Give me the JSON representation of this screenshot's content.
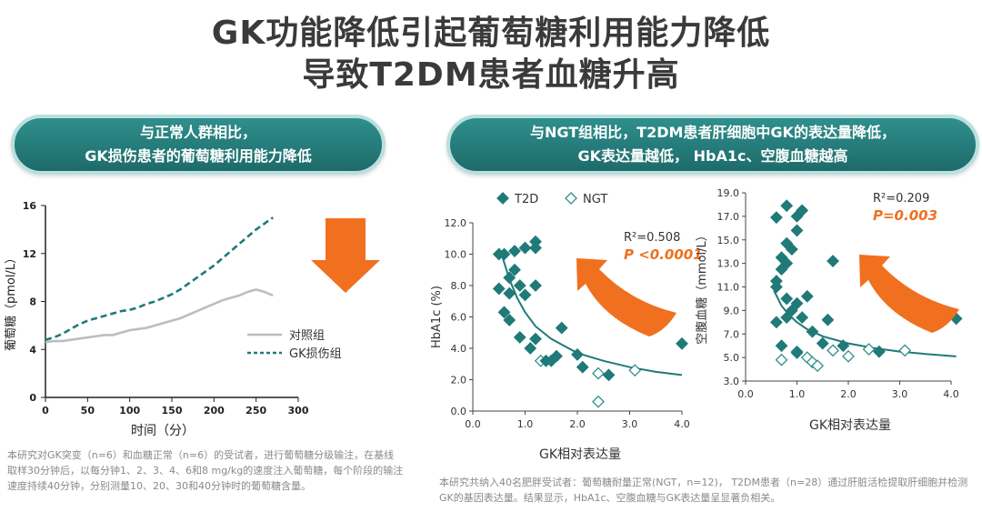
{
  "title": {
    "line1": "GK功能降低引起葡萄糖利用能力降低",
    "line2": "导致T2DM患者血糖升高"
  },
  "banner_left": {
    "line1": "与正常人群相比，",
    "line2": "GK损伤患者的葡萄糖利用能力降低"
  },
  "banner_right": {
    "line1": "与NGT组相比，T2DM患者肝细胞中GK的表达量降低，",
    "line2": "GK表达量越低， HbA1c、空腹血糖越高"
  },
  "note_left": "本研究对GK突变（n=6）和血糖正常（n=6）的受试者，进行葡萄糖分级输注，在基线取样30分钟后，以每分钟1、2、3、4、6和8 mg/kg的速度注入葡萄糖，每个阶段的输注速度持续40分钟，分别测量10、20、30和40分钟时的葡萄糖含量。",
  "note_right": "本研究共纳入40名肥胖受试者：葡萄糖耐量正常(NGT，n=12)， T2DM患者（n=28）通过肝脏活检提取肝细胞并检测GK的基因表达量。结果显示，HbA1c、空腹血糖与GK表达量呈显著负相关。",
  "colors": {
    "teal": "#1f7a78",
    "gray_line": "#bdbdbd",
    "orange": "#f07020",
    "text": "#444444"
  },
  "chart_data": [
    {
      "type": "line",
      "xlabel": "时间（分）",
      "ylabel": "葡萄糖（pmol/L）",
      "xlim": [
        0,
        300
      ],
      "ylim": [
        0,
        16
      ],
      "xticks": [
        0,
        50,
        100,
        150,
        200,
        250,
        300
      ],
      "yticks": [
        0,
        4,
        8,
        12,
        16
      ],
      "legend_position": "bottom-right",
      "series": [
        {
          "name": "对照组",
          "style": "solid",
          "color": "#bdbdbd",
          "x": [
            0,
            10,
            20,
            30,
            40,
            50,
            60,
            70,
            80,
            90,
            100,
            110,
            120,
            130,
            140,
            150,
            160,
            170,
            180,
            190,
            200,
            210,
            220,
            230,
            240,
            250,
            260,
            270
          ],
          "y": [
            4.6,
            4.7,
            4.7,
            4.8,
            4.9,
            5.0,
            5.1,
            5.2,
            5.2,
            5.4,
            5.6,
            5.7,
            5.8,
            6.0,
            6.2,
            6.4,
            6.6,
            6.9,
            7.2,
            7.5,
            7.8,
            8.1,
            8.3,
            8.5,
            8.8,
            9.0,
            8.8,
            8.5
          ]
        },
        {
          "name": "GK损伤组",
          "style": "dashed",
          "color": "#1f7a78",
          "x": [
            0,
            10,
            20,
            30,
            40,
            50,
            60,
            70,
            80,
            90,
            100,
            110,
            120,
            130,
            140,
            150,
            160,
            170,
            180,
            190,
            200,
            210,
            220,
            230,
            240,
            250,
            260,
            270
          ],
          "y": [
            4.8,
            5.0,
            5.3,
            5.7,
            6.1,
            6.4,
            6.6,
            6.8,
            7.0,
            7.2,
            7.3,
            7.5,
            7.8,
            8.0,
            8.3,
            8.6,
            9.0,
            9.5,
            10.0,
            10.5,
            11.0,
            11.6,
            12.2,
            12.8,
            13.4,
            14.0,
            14.5,
            15.0
          ]
        }
      ]
    },
    {
      "type": "scatter",
      "xlabel": "GK相对表达量",
      "ylabel": "HbA1c (%)",
      "xlim": [
        0.0,
        4.0
      ],
      "ylim": [
        0.0,
        12.0
      ],
      "xticks": [
        "0.0",
        "1.0",
        "2.0",
        "3.0",
        "4.0"
      ],
      "yticks": [
        "0.0",
        "2.0",
        "4.0",
        "6.0",
        "8.0",
        "10.0",
        "12.0"
      ],
      "legend": {
        "t2d": "T2D",
        "ngt": "NGT"
      },
      "stats": {
        "r2": "R²=0.508",
        "p": "P <0.0001"
      },
      "t2d": [
        [
          0.5,
          10.0
        ],
        [
          0.6,
          10.0
        ],
        [
          0.8,
          10.2
        ],
        [
          1.0,
          10.4
        ],
        [
          1.2,
          10.8
        ],
        [
          1.2,
          10.4
        ],
        [
          0.5,
          7.8
        ],
        [
          0.7,
          7.5
        ],
        [
          0.7,
          8.5
        ],
        [
          0.8,
          9.0
        ],
        [
          0.9,
          8.0
        ],
        [
          1.0,
          7.4
        ],
        [
          1.2,
          8.0
        ],
        [
          0.6,
          6.3
        ],
        [
          0.7,
          5.8
        ],
        [
          0.9,
          4.7
        ],
        [
          1.1,
          4.0
        ],
        [
          1.2,
          4.6
        ],
        [
          1.4,
          3.2
        ],
        [
          1.5,
          3.2
        ],
        [
          1.6,
          3.5
        ],
        [
          1.7,
          5.3
        ],
        [
          2.0,
          3.6
        ],
        [
          2.1,
          2.8
        ],
        [
          2.6,
          2.3
        ],
        [
          4.0,
          4.3
        ]
      ],
      "ngt": [
        [
          1.3,
          3.2
        ],
        [
          2.4,
          2.4
        ],
        [
          3.1,
          2.6
        ],
        [
          2.4,
          0.6
        ]
      ],
      "fit": [
        [
          0.55,
          10.0
        ],
        [
          0.7,
          8.4
        ],
        [
          0.85,
          7.2
        ],
        [
          1.0,
          6.3
        ],
        [
          1.2,
          5.4
        ],
        [
          1.5,
          4.6
        ],
        [
          2.0,
          3.7
        ],
        [
          2.5,
          3.2
        ],
        [
          3.0,
          2.8
        ],
        [
          3.5,
          2.5
        ],
        [
          4.0,
          2.3
        ]
      ]
    },
    {
      "type": "scatter",
      "xlabel": "GK相对表达量",
      "ylabel": "空腹血糖（mmol/L）",
      "xlim": [
        0.0,
        4.0
      ],
      "ylim": [
        3.0,
        19.0
      ],
      "xticks": [
        "0.0",
        "1.0",
        "2.0",
        "3.0",
        "4.0"
      ],
      "yticks": [
        "3.0",
        "5.0",
        "7.0",
        "9.0",
        "11.0",
        "13.0",
        "15.0",
        "17.0",
        "19.0"
      ],
      "stats": {
        "r2": "R²=0.209",
        "p": "P=0.003"
      },
      "t2d": [
        [
          0.6,
          16.9
        ],
        [
          0.8,
          17.9
        ],
        [
          1.0,
          17.0
        ],
        [
          1.1,
          17.5
        ],
        [
          0.8,
          14.7
        ],
        [
          0.9,
          14.2
        ],
        [
          1.0,
          15.8
        ],
        [
          0.7,
          13.5
        ],
        [
          0.8,
          13.0
        ],
        [
          0.7,
          12.5
        ],
        [
          0.6,
          11.5
        ],
        [
          0.6,
          11.0
        ],
        [
          0.8,
          10.0
        ],
        [
          1.0,
          9.6
        ],
        [
          1.2,
          10.2
        ],
        [
          0.9,
          9.0
        ],
        [
          0.6,
          8.0
        ],
        [
          0.8,
          8.4
        ],
        [
          1.1,
          8.4
        ],
        [
          1.3,
          7.2
        ],
        [
          1.6,
          8.2
        ],
        [
          1.7,
          13.2
        ],
        [
          0.7,
          6.0
        ],
        [
          1.0,
          5.4
        ],
        [
          1.5,
          6.2
        ],
        [
          1.9,
          6.0
        ],
        [
          2.6,
          5.5
        ],
        [
          4.1,
          8.3
        ]
      ],
      "ngt": [
        [
          0.7,
          4.8
        ],
        [
          1.0,
          5.5
        ],
        [
          1.2,
          5.0
        ],
        [
          1.3,
          4.6
        ],
        [
          1.4,
          4.3
        ],
        [
          1.7,
          5.6
        ],
        [
          2.0,
          5.1
        ],
        [
          2.4,
          5.7
        ],
        [
          3.1,
          5.6
        ]
      ],
      "fit": [
        [
          0.55,
          10.7
        ],
        [
          0.7,
          9.4
        ],
        [
          0.85,
          8.6
        ],
        [
          1.0,
          8.0
        ],
        [
          1.2,
          7.4
        ],
        [
          1.5,
          6.8
        ],
        [
          2.0,
          6.2
        ],
        [
          2.5,
          5.8
        ],
        [
          3.0,
          5.5
        ],
        [
          3.5,
          5.3
        ],
        [
          4.1,
          5.1
        ]
      ]
    }
  ]
}
